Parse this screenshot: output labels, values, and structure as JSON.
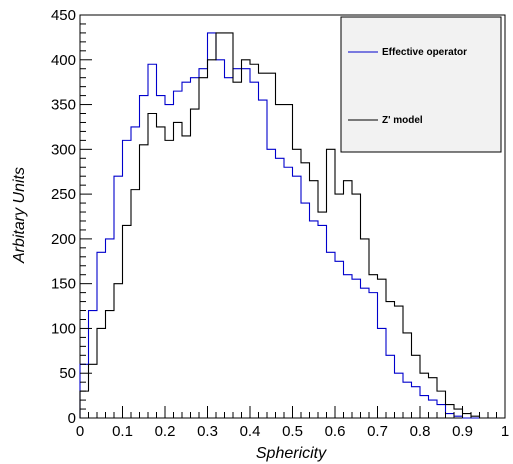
{
  "chart_data": {
    "type": "histogram",
    "xlabel": "Sphericity",
    "ylabel": "Arbitary Units",
    "xlim": [
      0,
      1
    ],
    "ylim": [
      0,
      450
    ],
    "x_ticks": [
      "0",
      "0.1",
      "0.2",
      "0.3",
      "0.4",
      "0.5",
      "0.6",
      "0.7",
      "0.8",
      "0.9",
      "1"
    ],
    "y_ticks": [
      "0",
      "50",
      "100",
      "150",
      "200",
      "250",
      "300",
      "350",
      "400",
      "450"
    ],
    "bin_width": 0.02,
    "legend_position": "top-right",
    "series": [
      {
        "name": "Effective operator",
        "color": "#0000cc",
        "values": [
          60,
          120,
          185,
          200,
          270,
          310,
          325,
          360,
          395,
          360,
          350,
          365,
          375,
          380,
          390,
          430,
          400,
          380,
          390,
          390,
          375,
          355,
          300,
          290,
          280,
          270,
          240,
          220,
          215,
          185,
          175,
          160,
          155,
          145,
          140,
          100,
          70,
          50,
          40,
          35,
          25,
          20,
          15,
          5,
          2,
          0,
          0,
          0,
          0,
          0
        ]
      },
      {
        "name": "Z' model",
        "color": "#000000",
        "values": [
          30,
          60,
          100,
          120,
          150,
          215,
          255,
          305,
          340,
          325,
          310,
          330,
          315,
          345,
          380,
          400,
          430,
          430,
          375,
          400,
          395,
          385,
          385,
          350,
          350,
          300,
          285,
          265,
          230,
          300,
          250,
          265,
          250,
          200,
          160,
          155,
          130,
          125,
          95,
          70,
          50,
          45,
          30,
          15,
          10,
          5,
          2,
          0,
          0,
          0
        ]
      }
    ]
  }
}
